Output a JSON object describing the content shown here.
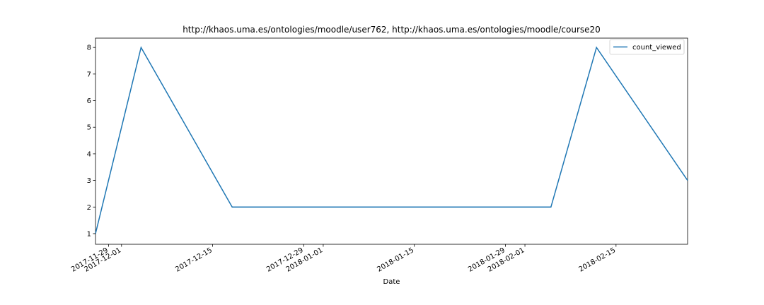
{
  "chart_data": {
    "type": "line",
    "title": "http://khaos.uma.es/ontologies/moodle/user762, http://khaos.uma.es/ontologies/moodle/course20",
    "xlabel": "Date",
    "ylabel": "",
    "x_type": "date",
    "xlim": [
      "2017-11-27",
      "2018-02-26"
    ],
    "ylim": [
      0.6,
      8.35
    ],
    "yticks": [
      1,
      2,
      3,
      4,
      5,
      6,
      7,
      8
    ],
    "xticks": [
      {
        "date": "2017-11-29",
        "label": "2017-11-29"
      },
      {
        "date": "2017-12-01",
        "label": "2017-12-01"
      },
      {
        "date": "2017-12-15",
        "label": "2017-12-15"
      },
      {
        "date": "2017-12-29",
        "label": "2017-12-29"
      },
      {
        "date": "2018-01-01",
        "label": "2018-01-01"
      },
      {
        "date": "2018-01-15",
        "label": "2018-01-15"
      },
      {
        "date": "2018-01-29",
        "label": "2018-01-29"
      },
      {
        "date": "2018-02-01",
        "label": "2018-02-01"
      },
      {
        "date": "2018-02-15",
        "label": "2018-02-15"
      }
    ],
    "grid": false,
    "legend_position": "top-right",
    "series": [
      {
        "name": "count_viewed",
        "color": "#1f77b4",
        "x": [
          "2017-11-27",
          "2017-12-04",
          "2017-12-18",
          "2018-02-05",
          "2018-02-12",
          "2018-02-26"
        ],
        "y": [
          1,
          8,
          2,
          2,
          8,
          3
        ]
      }
    ]
  }
}
